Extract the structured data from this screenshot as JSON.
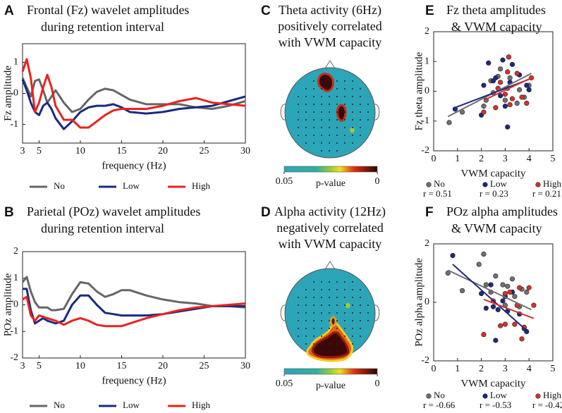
{
  "chart_data": [
    {
      "type": "line",
      "label": "A",
      "title": [
        "Frontal (Fz) wavelet amplitudes",
        "during retention interval"
      ],
      "xlabel": "frequency (Hz)",
      "ylabel": "Fz amplitude",
      "x": [
        3,
        3.5,
        4,
        4.5,
        5,
        5.5,
        6,
        6.5,
        7,
        8,
        9,
        10,
        11,
        12,
        13,
        14,
        15,
        16,
        18,
        20,
        22,
        24,
        26,
        28,
        30
      ],
      "xlim": [
        3,
        30
      ],
      "xticks": [
        3,
        5,
        10,
        15,
        20,
        25,
        30
      ],
      "ylim": [
        -1.6,
        1.6
      ],
      "yticks": [
        -1,
        0,
        1
      ],
      "series": [
        {
          "name": "No",
          "color": "#666666",
          "values": [
            0.5,
            0.2,
            -0.1,
            0.4,
            0.45,
            0.1,
            -0.3,
            -0.1,
            0.1,
            -0.3,
            -0.6,
            -0.5,
            -0.2,
            0.05,
            0.15,
            0.1,
            -0.05,
            -0.2,
            -0.35,
            -0.35,
            -0.35,
            -0.45,
            -0.5,
            -0.4,
            -0.25
          ]
        },
        {
          "name": "Low",
          "color": "#1a2a80",
          "values": [
            0.45,
            0.1,
            -0.3,
            -0.6,
            -0.7,
            -0.4,
            -0.3,
            -0.5,
            -0.8,
            -1.15,
            -0.9,
            -0.6,
            -0.45,
            -0.4,
            -0.4,
            -0.35,
            -0.45,
            -0.6,
            -0.65,
            -0.6,
            -0.5,
            -0.45,
            -0.4,
            -0.25,
            -0.1
          ]
        },
        {
          "name": "High",
          "color": "#e8231f",
          "values": [
            0.7,
            1.1,
            0.5,
            -0.6,
            -0.3,
            0.2,
            0.6,
            0.2,
            -0.4,
            -0.85,
            -0.85,
            -1.1,
            -1.1,
            -0.9,
            -0.7,
            -0.55,
            -0.5,
            -0.5,
            -0.5,
            -0.4,
            -0.25,
            -0.15,
            -0.3,
            -0.35,
            -0.4
          ]
        }
      ]
    },
    {
      "type": "line",
      "label": "B",
      "title": [
        "Parietal (POz) wavelet amplitudes",
        "during retention interval"
      ],
      "xlabel": "frequency (Hz)",
      "ylabel": "POz amplitude",
      "x": [
        3,
        3.5,
        4,
        4.5,
        5,
        5.5,
        6,
        6.5,
        7,
        8,
        9,
        10,
        11,
        12,
        13,
        14,
        15,
        16,
        18,
        20,
        22,
        24,
        26,
        28,
        30
      ],
      "xlim": [
        3,
        30
      ],
      "xticks": [
        3,
        5,
        10,
        15,
        20,
        25,
        30
      ],
      "ylim": [
        -2,
        2
      ],
      "yticks": [
        -2,
        -1,
        0,
        1,
        2
      ],
      "series": [
        {
          "name": "No",
          "color": "#666666",
          "values": [
            0.85,
            1.05,
            0.5,
            0.1,
            -0.1,
            -0.1,
            -0.1,
            -0.2,
            -0.2,
            -0.15,
            0.4,
            0.85,
            0.8,
            0.5,
            0.3,
            0.4,
            0.55,
            0.55,
            0.35,
            0.2,
            0.1,
            0.05,
            -0.05,
            -0.05,
            -0.1
          ]
        },
        {
          "name": "Low",
          "color": "#1a2a80",
          "values": [
            0.6,
            0.6,
            -0.2,
            -0.7,
            -0.6,
            -0.5,
            -0.6,
            -0.65,
            -0.7,
            -0.6,
            0,
            0.35,
            0.35,
            0,
            -0.3,
            -0.35,
            -0.4,
            -0.4,
            -0.4,
            -0.35,
            -0.25,
            -0.15,
            -0.05,
            -0.05,
            -0.05
          ]
        },
        {
          "name": "High",
          "color": "#e8231f",
          "values": [
            0.2,
            0.3,
            -0.4,
            -0.6,
            -0.4,
            -0.45,
            -0.5,
            -0.55,
            -0.6,
            -0.75,
            -0.6,
            -0.5,
            -0.6,
            -0.75,
            -0.8,
            -0.8,
            -0.8,
            -0.7,
            -0.5,
            -0.35,
            -0.2,
            -0.1,
            -0.05,
            0,
            0.05
          ]
        }
      ]
    },
    {
      "type": "topomap",
      "label": "C",
      "title": [
        "Theta activity (6Hz)",
        "positively correlated",
        "with VWM capacity"
      ],
      "clim": [
        0.05,
        0
      ],
      "cticks": [
        0.05,
        0
      ],
      "clabel": "p-value"
    },
    {
      "type": "topomap",
      "label": "D",
      "title": [
        "Alpha activity (12Hz)",
        "negatively correlated",
        "with VWM capacity"
      ],
      "clim": [
        0.05,
        0
      ],
      "cticks": [
        0.05,
        0
      ],
      "clabel": "p-value"
    },
    {
      "type": "scatter",
      "label": "E",
      "title": [
        "Fz theta amplitudes",
        "& VWM capacity"
      ],
      "xlabel": "VWM capacity",
      "ylabel": "Fz theta amplitude",
      "xlim": [
        0,
        5
      ],
      "xticks": [
        0,
        1,
        2,
        3,
        4,
        5
      ],
      "ylim": [
        -2,
        2
      ],
      "yticks": [
        -2,
        -1,
        0,
        1,
        2
      ],
      "series": [
        {
          "name": "No",
          "annotation": "r = 0.51",
          "color": "#707070",
          "x": [
            0.65,
            1.2,
            2.1,
            2.2,
            2.4,
            2.5,
            2.7,
            2.8,
            3.0,
            3.1,
            3.2,
            3.5,
            3.6,
            3.8,
            4.0
          ],
          "values": [
            -1.05,
            -0.7,
            -0.5,
            -0.3,
            0.35,
            -0.05,
            0.5,
            0.75,
            -0.3,
            0.1,
            0.45,
            -0.4,
            0.05,
            -0.2,
            0.2
          ],
          "trend_x": [
            0.6,
            4.1
          ],
          "trend_y": [
            -0.85,
            0.6
          ]
        },
        {
          "name": "Low",
          "annotation": "r = 0.23",
          "color": "#1a2a80",
          "x": [
            0.9,
            2.0,
            2.1,
            2.3,
            2.5,
            2.6,
            2.8,
            2.9,
            3.0,
            3.1,
            3.2,
            3.3,
            3.6,
            3.9,
            4.0
          ],
          "values": [
            -0.6,
            -0.8,
            0.2,
            0.95,
            0.35,
            0.45,
            -0.15,
            1.05,
            -0.5,
            -1.2,
            0.3,
            0.9,
            0.55,
            0.2,
            0.05
          ],
          "trend_x": [
            0.9,
            4.0
          ],
          "trend_y": [
            -0.55,
            0.4
          ]
        },
        {
          "name": "High",
          "annotation": "r = 0.21",
          "color": "#d9302a",
          "x": [
            2.1,
            2.6,
            2.7,
            2.8,
            3.0,
            3.1,
            3.15,
            3.2,
            3.3,
            3.5,
            3.7,
            3.9,
            4.1
          ],
          "values": [
            -0.7,
            -0.55,
            0.1,
            0.3,
            -0.1,
            0.65,
            1.15,
            -0.45,
            -0.25,
            0.6,
            -0.2,
            -0.4,
            0.45
          ],
          "trend_x": [
            2.1,
            4.1
          ],
          "trend_y": [
            -0.3,
            0.45
          ]
        }
      ]
    },
    {
      "type": "scatter",
      "label": "F",
      "title": [
        "POz alpha amplitudes",
        "& VWM capacity"
      ],
      "xlabel": "VWM capacity",
      "ylabel": "POz alpha amplitude",
      "xlim": [
        0,
        5
      ],
      "xticks": [
        0,
        1,
        2,
        3,
        4,
        5
      ],
      "ylim": [
        -2,
        2
      ],
      "yticks": [
        -2,
        0,
        2
      ],
      "series": [
        {
          "name": "No",
          "annotation": "r = -0.66",
          "color": "#707070",
          "x": [
            0.6,
            1.2,
            1.9,
            2.1,
            2.2,
            2.4,
            2.6,
            2.9,
            3.0,
            3.1,
            3.3,
            3.4,
            3.6,
            3.7,
            3.9
          ],
          "values": [
            1.0,
            0.4,
            1.3,
            1.65,
            0.6,
            0.35,
            0.9,
            0.6,
            -0.1,
            0.55,
            0.8,
            0.2,
            -0.15,
            0.45,
            0.35
          ],
          "trend_x": [
            0.6,
            4.1
          ],
          "trend_y": [
            1.1,
            -0.25
          ]
        },
        {
          "name": "Low",
          "annotation": "r = -0.53",
          "color": "#1a2a80",
          "x": [
            0.8,
            2.0,
            2.2,
            2.4,
            2.5,
            2.6,
            2.7,
            2.9,
            3.0,
            3.1,
            3.3,
            3.6,
            3.8,
            3.9
          ],
          "values": [
            1.6,
            0.3,
            -0.2,
            0.6,
            -0.15,
            -1.3,
            -0.25,
            0.05,
            0.2,
            -0.3,
            0.35,
            -0.4,
            -0.9,
            -1.0
          ],
          "trend_x": [
            0.8,
            3.95
          ],
          "trend_y": [
            1.3,
            -1.0
          ]
        },
        {
          "name": "High",
          "annotation": "r = -0.42",
          "color": "#d9302a",
          "x": [
            2.1,
            2.5,
            2.8,
            3.0,
            3.0,
            3.2,
            3.4,
            3.5,
            3.6,
            3.7,
            3.8,
            4.0,
            4.2
          ],
          "values": [
            -1.1,
            0.05,
            -0.8,
            -0.75,
            0.3,
            0.35,
            -0.75,
            -0.1,
            0.5,
            -1.25,
            -0.85,
            0.5,
            -0.1
          ],
          "trend_x": [
            2.1,
            4.2
          ],
          "trend_y": [
            0.1,
            -0.55
          ]
        }
      ]
    }
  ]
}
